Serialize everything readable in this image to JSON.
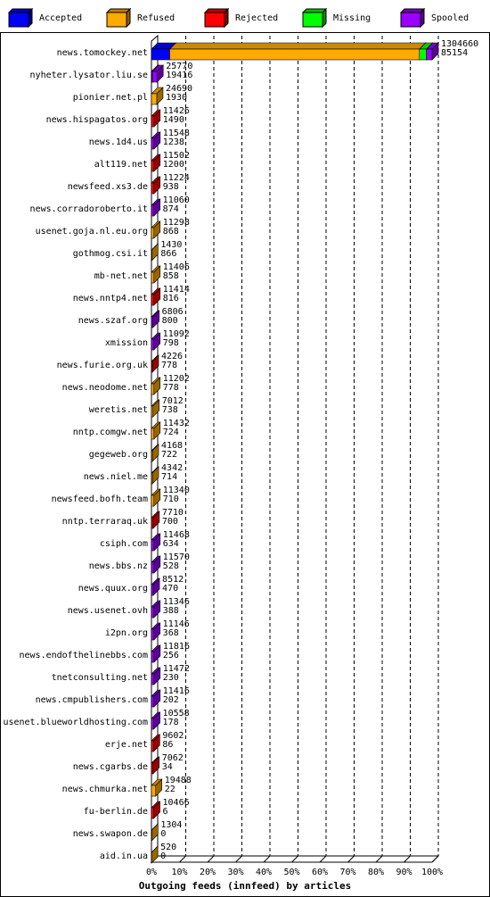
{
  "chart_data": {
    "type": "bar3d-stacked-horizontal",
    "x_label": "Outgoing feeds (innfeed) by articles",
    "categories": [
      "news.tomockey.net",
      "nyheter.lysator.liu.se",
      "pionier.net.pl",
      "news.hispagatos.org",
      "news.1d4.us",
      "alt119.net",
      "newsfeed.xs3.de",
      "news.corradoroberto.it",
      "usenet.goja.nl.eu.org",
      "gothmog.csi.it",
      "mb-net.net",
      "news.nntp4.net",
      "news.szaf.org",
      "xmission",
      "news.furie.org.uk",
      "news.neodome.net",
      "weretis.net",
      "nntp.comgw.net",
      "gegeweb.org",
      "news.niel.me",
      "newsfeed.bofh.team",
      "nntp.terraraq.uk",
      "csiph.com",
      "news.bbs.nz",
      "news.quux.org",
      "news.usenet.ovh",
      "i2pn.org",
      "news.endofthelinebbs.com",
      "tnetconsulting.net",
      "news.cmpublishers.com",
      "usenet.blueworldhosting.com",
      "erje.net",
      "news.cgarbs.de",
      "news.chmurka.net",
      "fu-berlin.de",
      "news.swapon.de",
      "aid.in.ua"
    ],
    "offered": [
      1304660,
      25770,
      24690,
      11426,
      11548,
      11502,
      11224,
      11060,
      11298,
      1430,
      11406,
      11414,
      6806,
      11092,
      4226,
      11202,
      7012,
      11432,
      4168,
      4342,
      11340,
      7710,
      11468,
      11570,
      8512,
      11346,
      11146,
      11816,
      11472,
      11416,
      10558,
      9602,
      7062,
      19488,
      10466,
      1304,
      520
    ],
    "accepted": [
      85154,
      19416,
      1930,
      1490,
      1238,
      1200,
      938,
      874,
      868,
      866,
      858,
      816,
      800,
      798,
      778,
      778,
      738,
      724,
      722,
      714,
      710,
      700,
      634,
      528,
      470,
      388,
      368,
      256,
      230,
      202,
      178,
      86,
      34,
      22,
      6,
      0,
      0
    ],
    "series": [
      {
        "name": "Accepted",
        "color": "#0000ff",
        "values": [
          6.5,
          0.3,
          0,
          0,
          0,
          0,
          0,
          0,
          0,
          0,
          0,
          0,
          0,
          0,
          0,
          0,
          0,
          0,
          0,
          0,
          0,
          0,
          0,
          0,
          0,
          0,
          0,
          0,
          0,
          0,
          0,
          0,
          0,
          0,
          0,
          0,
          0
        ]
      },
      {
        "name": "Refused",
        "color": "#ffaa00",
        "values": [
          89,
          0,
          1.89,
          0,
          0,
          0,
          0,
          0,
          0.87,
          0.11,
          0.87,
          0,
          0,
          0,
          0,
          0.86,
          0.54,
          0.88,
          0.32,
          0.33,
          0.87,
          0,
          0,
          0,
          0,
          0,
          0,
          0,
          0,
          0,
          0,
          0,
          0,
          1.49,
          0,
          0.1,
          0.04
        ]
      },
      {
        "name": "Rejected",
        "color": "#ff0000",
        "values": [
          0,
          0,
          0,
          0.88,
          0,
          0.88,
          0.86,
          0,
          0,
          0,
          0,
          0.87,
          0,
          0,
          0.32,
          0,
          0,
          0,
          0,
          0,
          0,
          0.59,
          0,
          0,
          0,
          0,
          0,
          0,
          0,
          0,
          0,
          0.74,
          0.54,
          0,
          0.8,
          0,
          0
        ]
      },
      {
        "name": "Missing",
        "color": "#00ff00",
        "values": [
          2.5,
          0,
          0,
          0,
          0,
          0,
          0,
          0,
          0,
          0,
          0,
          0,
          0,
          0,
          0,
          0,
          0,
          0,
          0,
          0,
          0,
          0,
          0,
          0,
          0,
          0,
          0,
          0,
          0,
          0,
          0,
          0,
          0,
          0,
          0,
          0,
          0
        ]
      },
      {
        "name": "Spooled",
        "color": "#9900ff",
        "values": [
          2,
          1.68,
          0,
          0,
          0.89,
          0,
          0,
          0.85,
          0,
          0,
          0,
          0,
          0.52,
          0.85,
          0,
          0,
          0,
          0,
          0,
          0,
          0,
          0,
          0.88,
          0.89,
          0.65,
          0.87,
          0.85,
          0.91,
          0.88,
          0.88,
          0.81,
          0,
          0,
          0,
          0,
          0,
          0
        ]
      }
    ],
    "xlim": [
      0,
      100
    ],
    "xticks": [
      {
        "value": 0,
        "label": "0%"
      },
      {
        "value": 10,
        "label": "10%"
      },
      {
        "value": 20,
        "label": "20%"
      },
      {
        "value": 30,
        "label": "30%"
      },
      {
        "value": 40,
        "label": "40%"
      },
      {
        "value": 50,
        "label": "50%"
      },
      {
        "value": 60,
        "label": "60%"
      },
      {
        "value": 70,
        "label": "70%"
      },
      {
        "value": 80,
        "label": "80%"
      },
      {
        "value": 90,
        "label": "90%"
      },
      {
        "value": 100,
        "label": "100%"
      }
    ],
    "grid": true
  }
}
